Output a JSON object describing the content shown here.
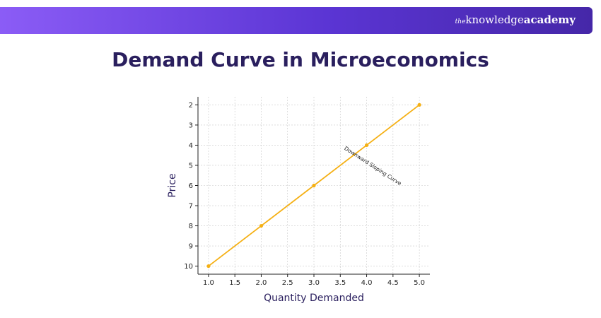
{
  "header": {
    "brand_prefix": "the",
    "brand_mid": "knowledge",
    "brand_suffix": "academy",
    "colors": {
      "gradient_start": "#8b5cf6",
      "gradient_end": "#4527a8"
    }
  },
  "title": "Demand Curve in Microeconomics",
  "chart_data": {
    "type": "line",
    "x": [
      1.0,
      2.0,
      3.0,
      4.0,
      5.0
    ],
    "series": [
      {
        "values": [
          10,
          8,
          6,
          4,
          2
        ],
        "color": "#f5b014"
      }
    ],
    "xlabel": "Quantity Demanded",
    "ylabel": "Price",
    "xlim": [
      0.8,
      5.2
    ],
    "ylim": [
      10.4,
      1.6
    ],
    "y_inverted": true,
    "x_ticks": [
      "1.0",
      "1.5",
      "2.0",
      "2.5",
      "3.0",
      "3.5",
      "4.0",
      "4.5",
      "5.0"
    ],
    "y_ticks": [
      "2",
      "3",
      "4",
      "5",
      "6",
      "7",
      "8",
      "9",
      "10"
    ],
    "grid": true,
    "annotation": {
      "text": "Downward Sloping Curve",
      "x": 4.1,
      "y": 5.1
    }
  }
}
